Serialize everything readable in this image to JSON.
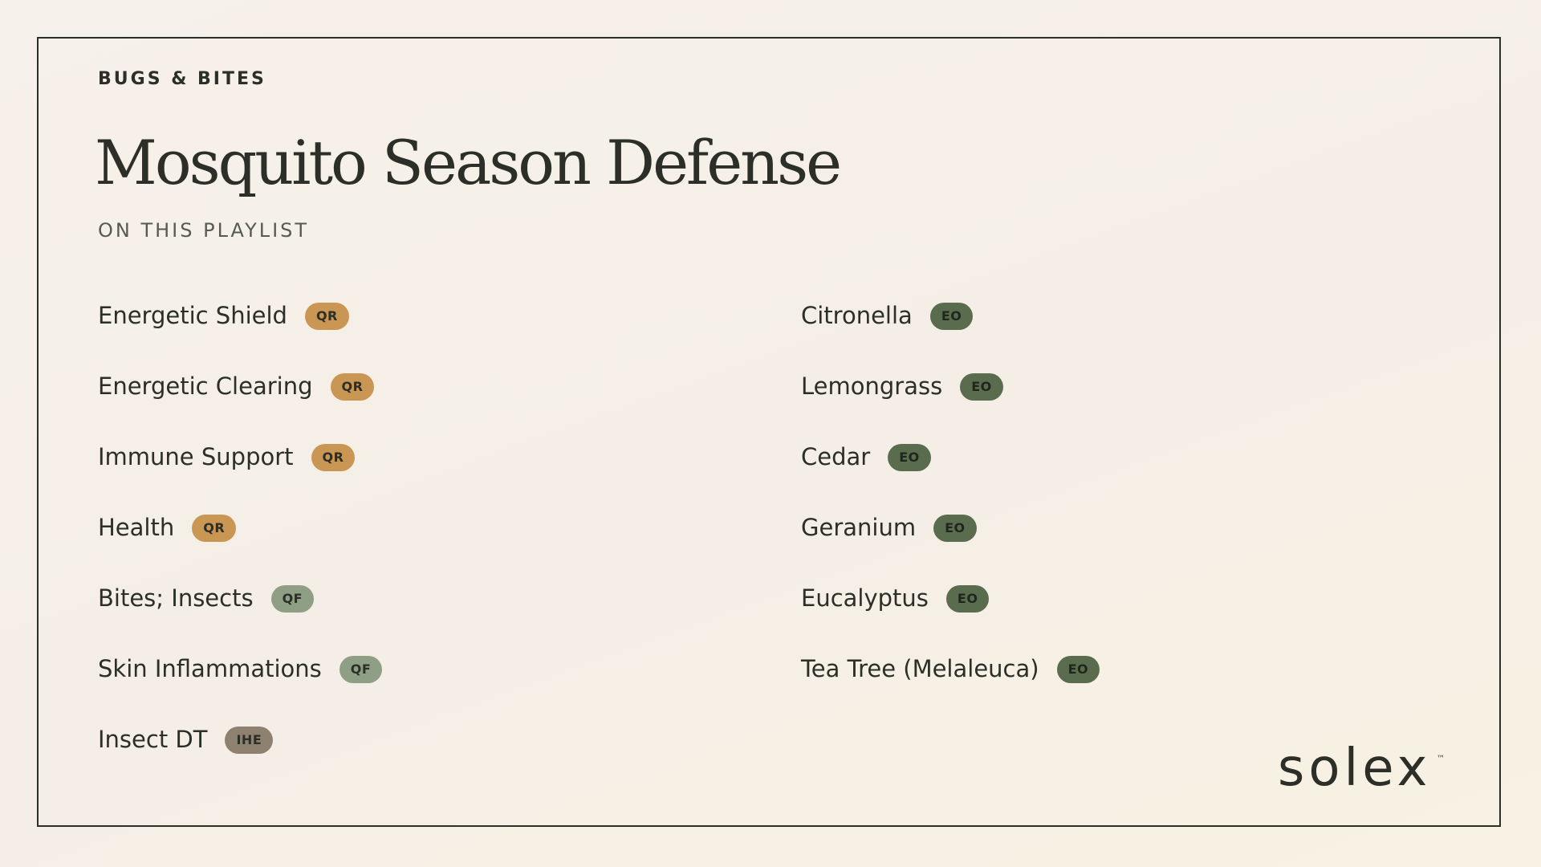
{
  "header": {
    "category": "BUGS & BITES",
    "title": "Mosquito Season Defense",
    "subtitle": "ON THIS PLAYLIST"
  },
  "playlist": {
    "left": [
      {
        "name": "Energetic Shield",
        "badge": "QR"
      },
      {
        "name": "Energetic Clearing",
        "badge": "QR"
      },
      {
        "name": "Immune Support",
        "badge": "QR"
      },
      {
        "name": "Health",
        "badge": "QR"
      },
      {
        "name": "Bites; Insects",
        "badge": "QF"
      },
      {
        "name": "Skin Inflammations",
        "badge": "QF"
      },
      {
        "name": "Insect DT",
        "badge": "IHE"
      }
    ],
    "right": [
      {
        "name": "Citronella",
        "badge": "EO"
      },
      {
        "name": "Lemongrass",
        "badge": "EO"
      },
      {
        "name": "Cedar",
        "badge": "EO"
      },
      {
        "name": "Geranium",
        "badge": "EO"
      },
      {
        "name": "Eucalyptus",
        "badge": "EO"
      },
      {
        "name": "Tea Tree (Melaleuca)",
        "badge": "EO"
      }
    ]
  },
  "brand": {
    "logo": "solex",
    "trademark": "™"
  },
  "colors": {
    "QR": "#c99654",
    "QF": "#8f9f86",
    "IHE": "#8f8170",
    "EO": "#5a6c4e",
    "ink": "#2b2f27"
  }
}
